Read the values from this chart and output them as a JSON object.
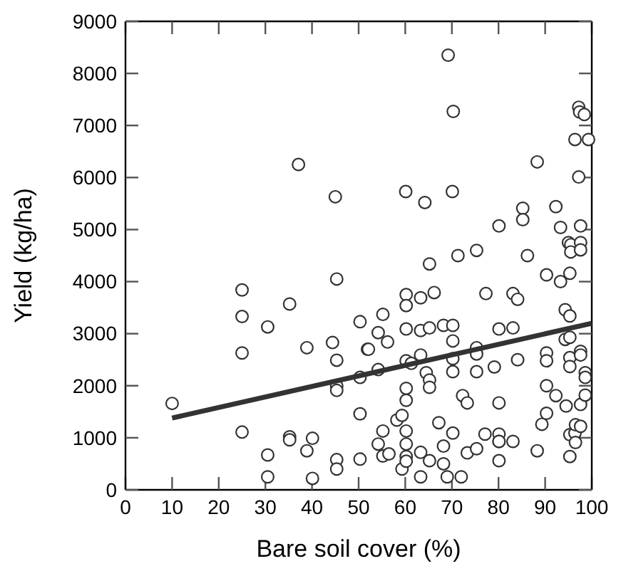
{
  "chart_data": {
    "type": "scatter",
    "xlabel": "Bare soil cover (%)",
    "ylabel": "Yield (kg/ha)",
    "xlim": [
      0,
      100
    ],
    "ylim": [
      0,
      9000
    ],
    "xticks": [
      0,
      10,
      20,
      30,
      40,
      50,
      60,
      70,
      80,
      90,
      100
    ],
    "yticks": [
      0,
      1000,
      2000,
      3000,
      4000,
      5000,
      6000,
      7000,
      8000,
      9000
    ],
    "grid": false,
    "series": [
      {
        "color": "#333333",
        "marker": "circle",
        "x": [
          10,
          25,
          25,
          25,
          25,
          30.5,
          30.5,
          30.5,
          35.2,
          35.2,
          35.2,
          37.1,
          38.9,
          38.9,
          40.1,
          40.1,
          44.4,
          45,
          45.3,
          45.3,
          45.3,
          45.3,
          45.3,
          45.3,
          50.3,
          50.3,
          50.3,
          50.3,
          51.9,
          52.1,
          54.2,
          54.2,
          54.2,
          55.2,
          55.2,
          55.2,
          56.2,
          56.5,
          58.2,
          59.3,
          59.3,
          60.1,
          60.2,
          60.2,
          60.2,
          60.2,
          60.2,
          60.2,
          60.2,
          60.2,
          60.2,
          60.2,
          61.3,
          63.3,
          63.3,
          63.3,
          63.3,
          63.3,
          64.2,
          64.5,
          65.2,
          65.2,
          65.2,
          65.2,
          65.2,
          66.2,
          67.2,
          68.2,
          68.2,
          68.2,
          69,
          69.2,
          70.1,
          70.2,
          70.2,
          70.2,
          70.2,
          70.2,
          70.3,
          71.3,
          72,
          72.3,
          73.3,
          73.3,
          75.3,
          75.3,
          75.3,
          75.3,
          75.3,
          77.1,
          77.3,
          79.1,
          80.1,
          80.1,
          80.1,
          80.1,
          80.1,
          80.1,
          80.1,
          83.1,
          83.1,
          83.1,
          84.1,
          84.1,
          85.2,
          85.2,
          86.2,
          88.3,
          88.3,
          89.3,
          90.3,
          90.3,
          90.3,
          90.3,
          90.3,
          92.3,
          92.3,
          93.3,
          93.3,
          94.3,
          94.3,
          94.5,
          95,
          95.3,
          95.3,
          95.3,
          95.3,
          95.3,
          95.3,
          95.3,
          95.5,
          95.5,
          96.4,
          96.4,
          96.5,
          96.5,
          97.2,
          97.2,
          97.4,
          97.6,
          97.6,
          97.6,
          97.6,
          97.6,
          97.6,
          97.6,
          98.4,
          98.6,
          98.6,
          98.6,
          99.3
        ],
        "values": [
          1660,
          3840,
          3330,
          2630,
          1110,
          3130,
          670,
          250,
          3570,
          1020,
          960,
          6250,
          2730,
          750,
          990,
          220,
          2830,
          5630,
          4050,
          2490,
          1990,
          1910,
          580,
          400,
          3230,
          2160,
          1460,
          590,
          2700,
          2700,
          3020,
          2310,
          880,
          3370,
          1130,
          650,
          2840,
          690,
          1340,
          1430,
          400,
          5730,
          3750,
          3540,
          3090,
          2480,
          1950,
          1720,
          1130,
          880,
          640,
          550,
          2430,
          3690,
          3060,
          2590,
          720,
          250,
          5520,
          2250,
          3110,
          2110,
          1970,
          560,
          4340,
          3790,
          1290,
          3160,
          840,
          500,
          250,
          8350,
          5730,
          3160,
          2860,
          2520,
          2270,
          1090,
          7270,
          4500,
          250,
          1810,
          1670,
          710,
          4600,
          2730,
          2610,
          2270,
          790,
          1070,
          3770,
          2360,
          5070,
          3090,
          1670,
          1070,
          930,
          930,
          560,
          3110,
          930,
          3770,
          3660,
          2500,
          5410,
          5190,
          4500,
          750,
          6300,
          1260,
          1470,
          2000,
          2630,
          2480,
          4130,
          5440,
          1810,
          5040,
          4000,
          3460,
          2890,
          1610,
          4750,
          4160,
          3340,
          2930,
          2540,
          2370,
          1060,
          640,
          4710,
          4570,
          1090,
          6730,
          910,
          1250,
          7350,
          6010,
          7260,
          2660,
          2590,
          1640,
          1220,
          5070,
          4750,
          4610,
          7210,
          2250,
          2160,
          1820,
          6730
        ]
      },
      {
        "type": "line",
        "color": "#333333",
        "x": [
          10,
          100
        ],
        "values": [
          1380,
          3200
        ]
      }
    ]
  }
}
